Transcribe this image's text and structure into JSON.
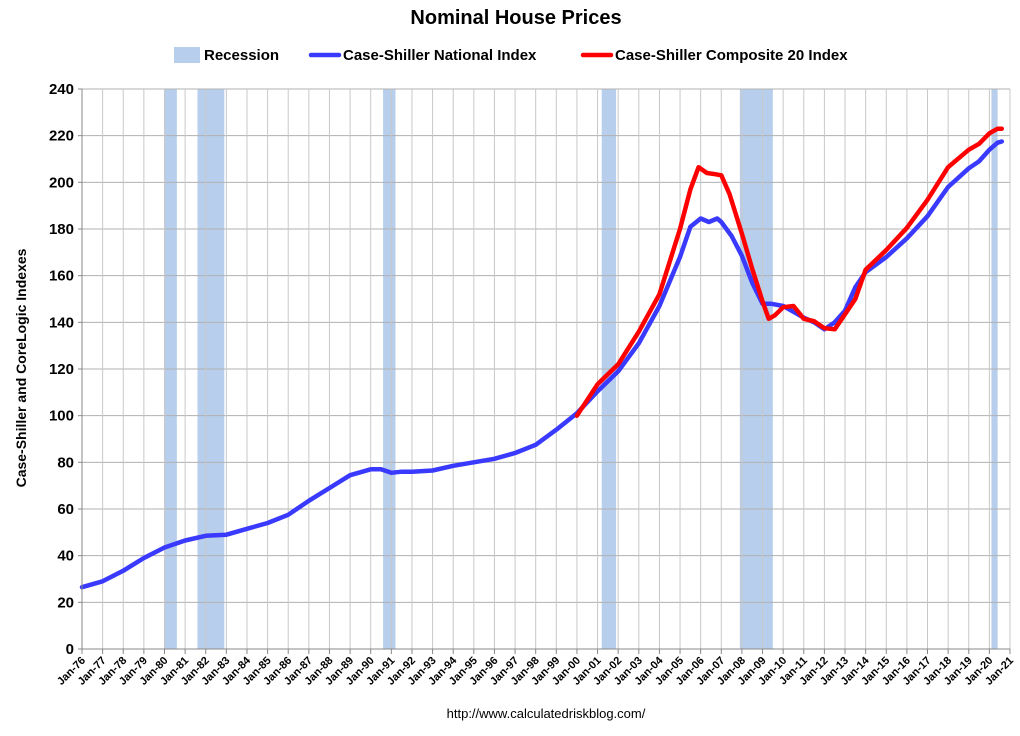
{
  "chart_data": {
    "type": "line",
    "title": "Nominal House Prices",
    "ylabel": "Case-Shiller and CoreLogic Indexes",
    "xlabel": "",
    "source_text": "http://www.calculatedriskblog.com/",
    "ylim": [
      0,
      240
    ],
    "yticks": [
      0,
      20,
      40,
      60,
      80,
      100,
      120,
      140,
      160,
      180,
      200,
      220,
      240
    ],
    "xlim": [
      1976.0,
      2021.0
    ],
    "x_tick_labels": [
      "Jan-76",
      "Jan-77",
      "Jan-78",
      "Jan-79",
      "Jan-80",
      "Jan-81",
      "Jan-82",
      "Jan-83",
      "Jan-84",
      "Jan-85",
      "Jan-86",
      "Jan-87",
      "Jan-88",
      "Jan-89",
      "Jan-90",
      "Jan-91",
      "Jan-92",
      "Jan-93",
      "Jan-94",
      "Jan-95",
      "Jan-96",
      "Jan-97",
      "Jan-98",
      "Jan-99",
      "Jan-00",
      "Jan-01",
      "Jan-02",
      "Jan-03",
      "Jan-04",
      "Jan-05",
      "Jan-06",
      "Jan-07",
      "Jan-08",
      "Jan-09",
      "Jan-10",
      "Jan-11",
      "Jan-12",
      "Jan-13",
      "Jan-14",
      "Jan-15",
      "Jan-16",
      "Jan-17",
      "Jan-18",
      "Jan-19",
      "Jan-20",
      "Jan-21"
    ],
    "x_tick_values": [
      1976,
      1977,
      1978,
      1979,
      1980,
      1981,
      1982,
      1983,
      1984,
      1985,
      1986,
      1987,
      1988,
      1989,
      1990,
      1991,
      1992,
      1993,
      1994,
      1995,
      1996,
      1997,
      1998,
      1999,
      2000,
      2001,
      2002,
      2003,
      2004,
      2005,
      2006,
      2007,
      2008,
      2009,
      2010,
      2011,
      2012,
      2013,
      2014,
      2015,
      2016,
      2017,
      2018,
      2019,
      2020,
      2021
    ],
    "grid": true,
    "legend_position": "top-center",
    "recessions": [
      {
        "start": 1980.0,
        "end": 1980.6
      },
      {
        "start": 1981.6,
        "end": 1982.9
      },
      {
        "start": 1990.6,
        "end": 1991.2
      },
      {
        "start": 2001.2,
        "end": 2001.9
      },
      {
        "start": 2007.9,
        "end": 2009.5
      },
      {
        "start": 2020.1,
        "end": 2020.4
      }
    ],
    "recession_color": "#b7cfec",
    "legend": [
      {
        "name": "Recession",
        "kind": "band",
        "color": "#b7cfec"
      },
      {
        "name": "Case-Shiller National Index",
        "kind": "line",
        "color": "#3a3aff"
      },
      {
        "name": "Case-Shiller Composite 20 Index",
        "kind": "line",
        "color": "#ff0000"
      }
    ],
    "series": [
      {
        "name": "Case-Shiller National Index",
        "color": "#3a3aff",
        "x": [
          1976.0,
          1977.0,
          1978.0,
          1979.0,
          1980.0,
          1981.0,
          1982.0,
          1983.0,
          1984.0,
          1985.0,
          1986.0,
          1987.0,
          1988.0,
          1989.0,
          1990.0,
          1990.5,
          1991.0,
          1991.5,
          1992.0,
          1993.0,
          1994.0,
          1995.0,
          1996.0,
          1997.0,
          1998.0,
          1999.0,
          2000.0,
          2001.0,
          2002.0,
          2003.0,
          2004.0,
          2005.0,
          2005.5,
          2006.0,
          2006.4,
          2006.8,
          2007.0,
          2007.5,
          2008.0,
          2008.5,
          2009.0,
          2009.4,
          2010.0,
          2010.5,
          2011.0,
          2011.5,
          2012.0,
          2012.5,
          2013.0,
          2013.5,
          2014.0,
          2015.0,
          2016.0,
          2017.0,
          2018.0,
          2019.0,
          2019.5,
          2020.0,
          2020.4,
          2020.6
        ],
        "values": [
          26.5,
          29.0,
          33.5,
          39.0,
          43.5,
          46.5,
          48.5,
          49.0,
          51.5,
          54.0,
          57.5,
          63.5,
          69.0,
          74.5,
          77.0,
          77.0,
          75.5,
          76.0,
          76.0,
          76.5,
          78.5,
          80.0,
          81.5,
          84.0,
          87.5,
          94.0,
          101.0,
          110.5,
          119.0,
          131.0,
          147.0,
          168.0,
          181.0,
          184.5,
          183.0,
          184.5,
          183.0,
          177.0,
          168.5,
          157.0,
          148.0,
          148.0,
          147.0,
          144.5,
          142.0,
          140.0,
          137.0,
          140.0,
          145.0,
          155.0,
          161.5,
          168.0,
          176.0,
          185.5,
          198.0,
          206.0,
          209.0,
          214.0,
          217.0,
          217.5
        ]
      },
      {
        "name": "Case-Shiller Composite 20 Index",
        "color": "#ff0000",
        "x": [
          2000.0,
          2001.0,
          2002.0,
          2003.0,
          2004.0,
          2005.0,
          2005.5,
          2005.9,
          2006.3,
          2006.7,
          2007.0,
          2007.4,
          2008.0,
          2008.5,
          2009.0,
          2009.3,
          2009.6,
          2010.0,
          2010.5,
          2011.0,
          2011.5,
          2012.0,
          2012.5,
          2013.0,
          2013.5,
          2014.0,
          2015.0,
          2016.0,
          2017.0,
          2018.0,
          2019.0,
          2019.5,
          2020.0,
          2020.4,
          2020.6
        ],
        "values": [
          100.0,
          113.5,
          122.0,
          136.0,
          152.0,
          180.0,
          197.0,
          206.5,
          204.0,
          203.5,
          203.0,
          195.0,
          178.0,
          163.0,
          149.0,
          141.5,
          143.0,
          146.5,
          147.0,
          141.5,
          140.5,
          137.5,
          137.0,
          143.5,
          150.0,
          162.5,
          171.0,
          180.5,
          192.5,
          206.5,
          214.0,
          216.5,
          221.0,
          223.0,
          223.0
        ]
      }
    ]
  }
}
